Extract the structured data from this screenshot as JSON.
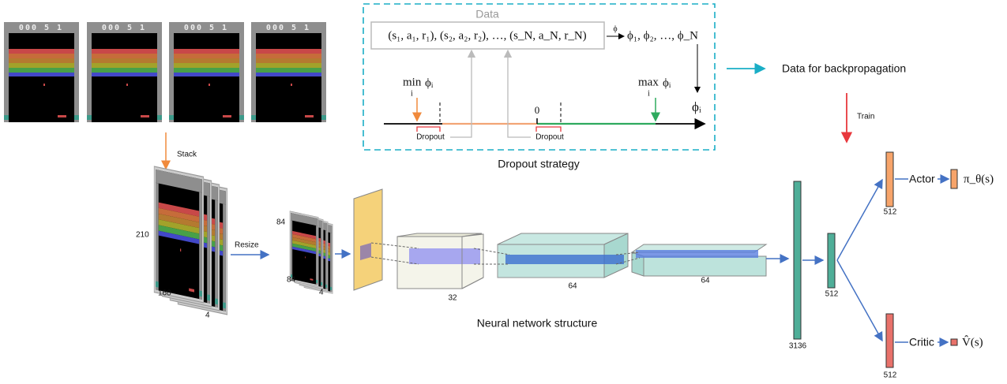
{
  "frames": {
    "scores": [
      "000 5 1",
      "000 5 1",
      "000 5 1",
      "000 5 1"
    ],
    "stack_label": "Stack"
  },
  "dropout_strategy": {
    "box_title": "Data",
    "data_tuple": "(s₁, a₁, r₁), (s₂, a₂, r₂), …, (s_N, a_N, r_N)",
    "map_label": "ϕ",
    "features": "ϕ₁, ϕ₂, …, ϕ_N",
    "min_operator": "min",
    "min_index": "i",
    "min_term": "ϕᵢ",
    "max_operator": "max",
    "max_index": "i",
    "max_term": "ϕᵢ",
    "axis_label": "ϕᵢ",
    "zero_label": "0",
    "dropout_labels": [
      "Dropout",
      "Dropout"
    ],
    "caption": "Dropout strategy"
  },
  "backprop_label": "Data for backpropagation",
  "train_label": "Train",
  "network": {
    "input_dims": [
      "210",
      "160",
      "4"
    ],
    "resize_label": "Resize",
    "resized_dims": [
      "84",
      "84",
      "4"
    ],
    "conv_channels": [
      "32",
      "64",
      "64"
    ],
    "dense_sizes": [
      "3136",
      "512"
    ],
    "actor_size": "512",
    "critic_size": "512",
    "actor_label": "Actor",
    "critic_label": "Critic",
    "policy_output": "π_θ(s)",
    "value_output": "V̂(s)",
    "caption": "Neural network structure"
  }
}
